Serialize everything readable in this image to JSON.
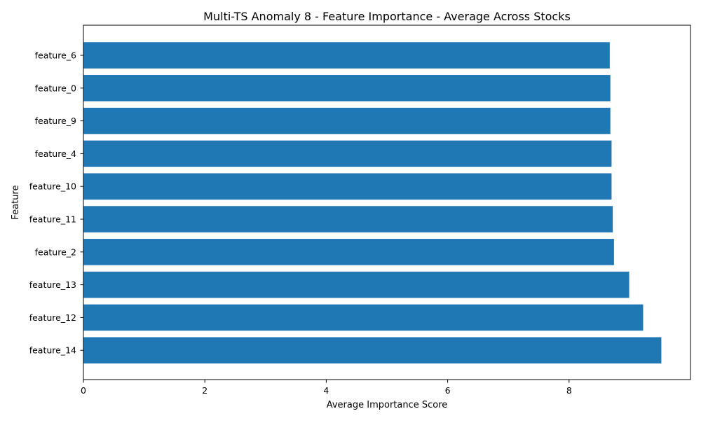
{
  "chart_data": {
    "type": "bar",
    "orientation": "horizontal",
    "title": "Multi-TS Anomaly 8 - Feature Importance - Average Across Stocks",
    "xlabel": "Average Importance Score",
    "ylabel": "Feature",
    "categories": [
      "feature_6",
      "feature_0",
      "feature_9",
      "feature_4",
      "feature_10",
      "feature_11",
      "feature_2",
      "feature_13",
      "feature_12",
      "feature_14"
    ],
    "values": [
      8.67,
      8.68,
      8.68,
      8.7,
      8.7,
      8.72,
      8.74,
      8.99,
      9.22,
      9.52
    ],
    "xlim": [
      0,
      10.0
    ],
    "xticks": [
      0,
      2,
      4,
      6,
      8
    ],
    "bar_color": "#1f77b4",
    "grid": false
  }
}
